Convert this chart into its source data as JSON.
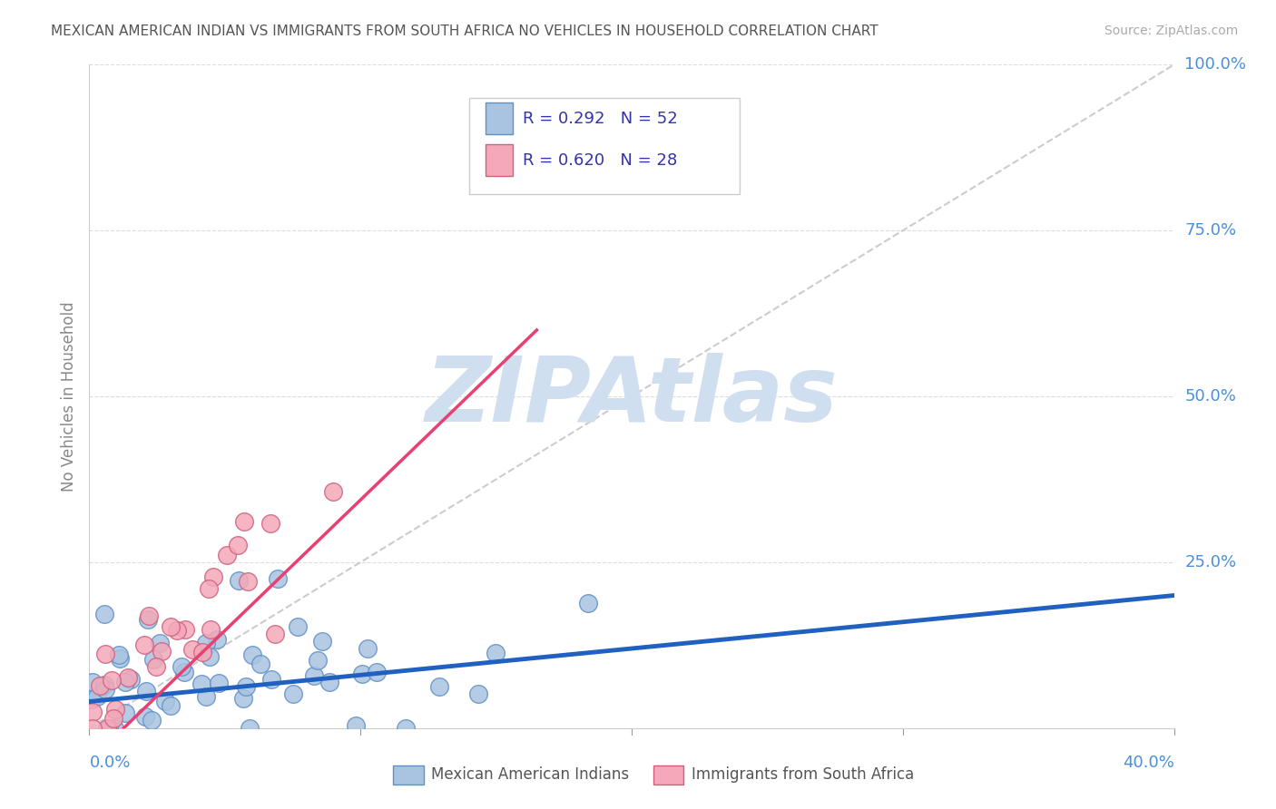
{
  "title": "MEXICAN AMERICAN INDIAN VS IMMIGRANTS FROM SOUTH AFRICA NO VEHICLES IN HOUSEHOLD CORRELATION CHART",
  "source": "Source: ZipAtlas.com",
  "ylabel": "No Vehicles in Household",
  "watermark": "ZIPAtlas",
  "legend1_label": "R = 0.292   N = 52",
  "legend2_label": "R = 0.620   N = 28",
  "legend_bottom1": "Mexican American Indians",
  "legend_bottom2": "Immigrants from South Africa",
  "blue_color": "#a8c4e0",
  "pink_color": "#f4a8b8",
  "blue_line_color": "#2060c0",
  "pink_line_color": "#e84070",
  "axis_label_color": "#4a90d9",
  "title_color": "#555555",
  "watermark_color": "#d0dff0",
  "grid_color": "#dddddd",
  "xlim": [
    0.0,
    0.4
  ],
  "ylim": [
    0.0,
    1.0
  ]
}
